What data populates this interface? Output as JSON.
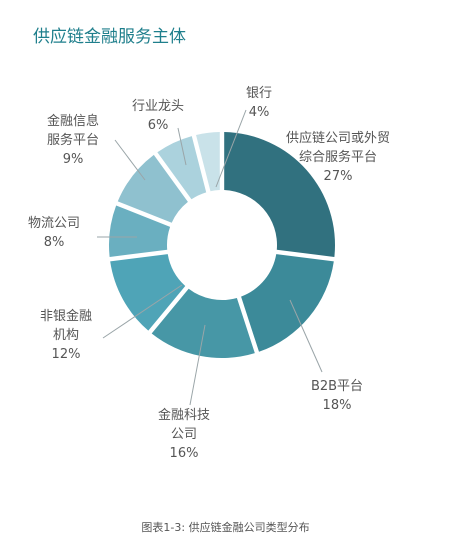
{
  "title": "供应链金融服务主体",
  "caption": "图表1-3: 供应链金融公司类型分布",
  "chart_data": {
    "type": "pie",
    "donut": true,
    "title": "供应链金融服务主体",
    "start": "top",
    "direction": "clockwise",
    "slices": [
      {
        "lines": [
          "供应链公司或外贸",
          "综合服务平台"
        ],
        "pct_label": "27%",
        "value": 27,
        "color": "#31717f"
      },
      {
        "lines": [
          "B2B平台"
        ],
        "pct_label": "18%",
        "value": 18,
        "color": "#3c8a99"
      },
      {
        "lines": [
          "金融科技",
          "公司"
        ],
        "pct_label": "16%",
        "value": 16,
        "color": "#4797a6"
      },
      {
        "lines": [
          "非银金融",
          "机构"
        ],
        "pct_label": "12%",
        "value": 12,
        "color": "#4fa4b7"
      },
      {
        "lines": [
          "物流公司"
        ],
        "pct_label": "8%",
        "value": 8,
        "color": "#6aafc0"
      },
      {
        "lines": [
          "金融信息",
          "服务平台"
        ],
        "pct_label": "9%",
        "value": 9,
        "color": "#8fc1cf"
      },
      {
        "lines": [
          "行业龙头"
        ],
        "pct_label": "6%",
        "value": 6,
        "color": "#abd2dd"
      },
      {
        "lines": [
          "银行"
        ],
        "pct_label": "4%",
        "value": 4,
        "color": "#c9e2e9"
      }
    ]
  }
}
